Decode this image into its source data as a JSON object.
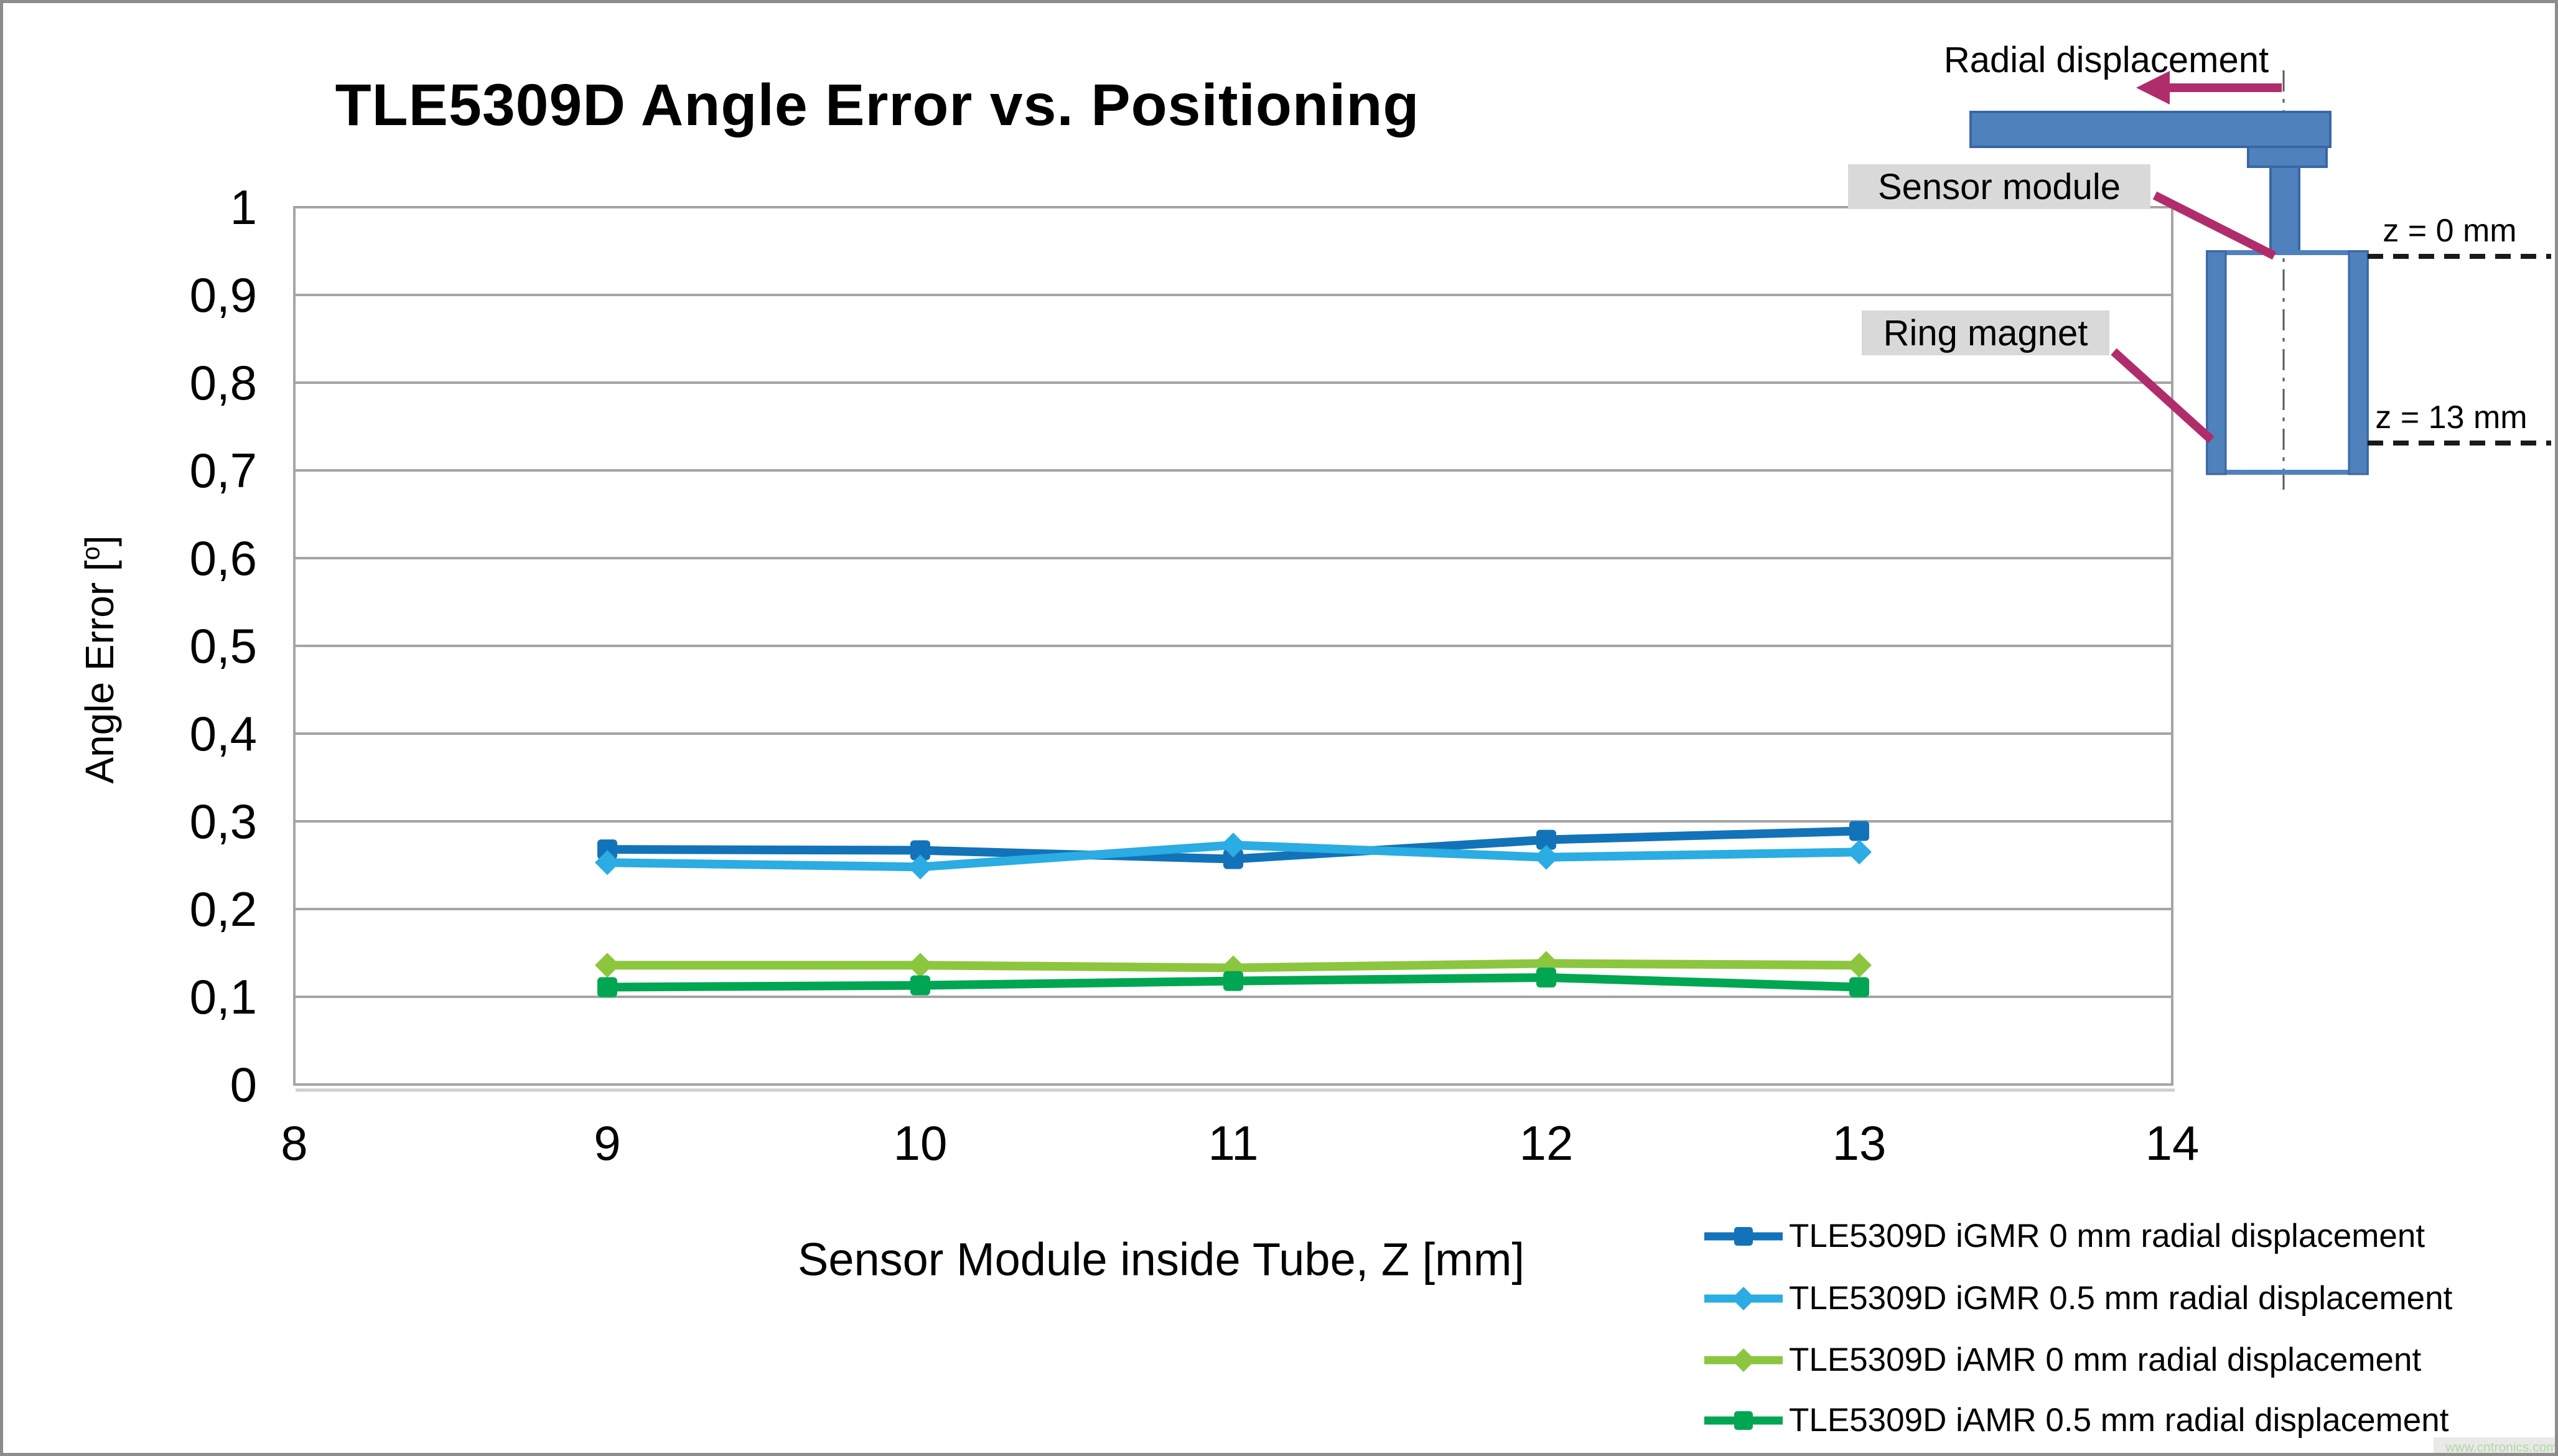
{
  "page": {
    "border_color": "#8C8C8C",
    "background": "#FFFFFF"
  },
  "title": {
    "text": "TLE5309D Angle Error vs. Positioning"
  },
  "axis": {
    "x_title": "Sensor Module inside Tube, Z [mm]",
    "y_title_pre": "Angle Error [",
    "y_title_sup": "o",
    "y_title_post": "]"
  },
  "chart_data": {
    "type": "line",
    "title": "TLE5309D Angle Error vs. Positioning",
    "xlabel": "Sensor Module inside Tube, Z [mm]",
    "ylabel": "Angle Error [°]",
    "xlim": [
      8,
      14
    ],
    "ylim": [
      0,
      1
    ],
    "x_tick_labels": [
      "8",
      "9",
      "10",
      "11",
      "12",
      "13",
      "14"
    ],
    "y_tick_labels_top_to_bottom": [
      "1",
      "0,9",
      "0,8",
      "0,7",
      "0,6",
      "0,5",
      "0,4",
      "0,3",
      "0,2",
      "0,1",
      "0"
    ],
    "grid": "horizontal",
    "grid_color": "#A5A5A5",
    "legend_position": "bottom-right",
    "x": [
      9,
      10,
      11,
      12,
      13
    ],
    "series": [
      {
        "name": "TLE5309D iGMR 0 mm radial displacement",
        "color": "#1273B8",
        "marker": "square",
        "values": [
          0.268,
          0.267,
          0.257,
          0.279,
          0.289
        ]
      },
      {
        "name": "TLE5309D iGMR 0.5 mm radial displacement",
        "color": "#2BACE2",
        "marker": "diamond",
        "values": [
          0.253,
          0.248,
          0.273,
          0.259,
          0.265
        ]
      },
      {
        "name": "TLE5309D iAMR 0 mm radial displacement",
        "color": "#8CC63F",
        "marker": "diamond",
        "values": [
          0.136,
          0.136,
          0.133,
          0.138,
          0.136
        ]
      },
      {
        "name": "TLE5309D iAMR 0.5 mm radial displacement",
        "color": "#00A651",
        "marker": "square",
        "values": [
          0.111,
          0.113,
          0.118,
          0.122,
          0.111
        ]
      }
    ]
  },
  "inset": {
    "radial_label": "Radial displacement",
    "sensor_label": "Sensor module",
    "ring_label": "Ring magnet",
    "z0_label": "z = 0 mm",
    "z13_label": "z = 13 mm",
    "blue_fill": "#4F81BD",
    "blue_stroke": "#3A67A3",
    "arrow_color": "#B02D6C",
    "centerline_color": "#5A5A5A",
    "dash_color": "#1A1A1A",
    "label_bg": "#D9D9D9"
  },
  "watermark": {
    "text": "www.cntronics.com",
    "text_color": "#AFD8A8",
    "box_color": "#E9E9E6",
    "bar_color": "#8A8A8A"
  }
}
